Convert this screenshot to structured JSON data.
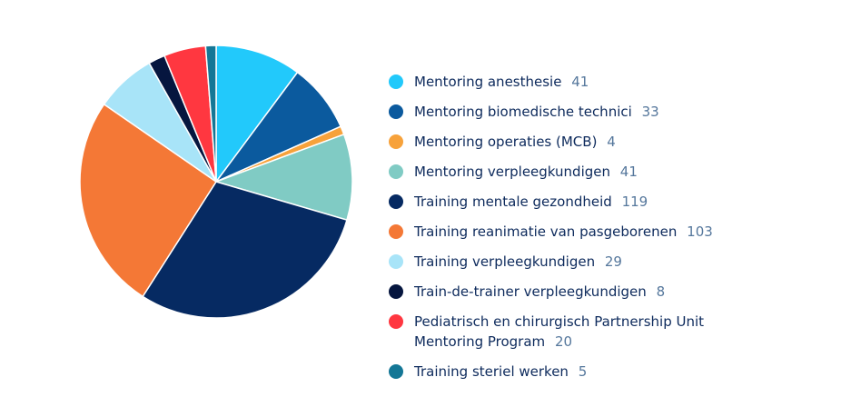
{
  "chart_data": {
    "type": "pie",
    "title": "",
    "legend_position": "right",
    "slices": [
      {
        "label": "Mentoring anesthesie",
        "value": 41,
        "color": "#22c9fb"
      },
      {
        "label": "Mentoring biomedische technici",
        "value": 33,
        "color": "#0b5a9e"
      },
      {
        "label": "Mentoring operaties (MCB)",
        "value": 4,
        "color": "#f7a23b"
      },
      {
        "label": "Mentoring verpleegkundigen",
        "value": 41,
        "color": "#80cbc4"
      },
      {
        "label": "Training mentale gezondheid",
        "value": 119,
        "color": "#062a62"
      },
      {
        "label": "Training reanimatie van pasgeborenen",
        "value": 103,
        "color": "#f47836"
      },
      {
        "label": "Training verpleegkundigen",
        "value": 29,
        "color": "#a8e4f8"
      },
      {
        "label": "Train-de-trainer verpleegkundigen",
        "value": 8,
        "color": "#06163f"
      },
      {
        "label": "Pediatrisch en chirurgisch Partnership Unit Mentoring Program",
        "value": 20,
        "color": "#ff3740"
      },
      {
        "label": "Training steriel werken",
        "value": 5,
        "color": "#147796"
      }
    ]
  }
}
